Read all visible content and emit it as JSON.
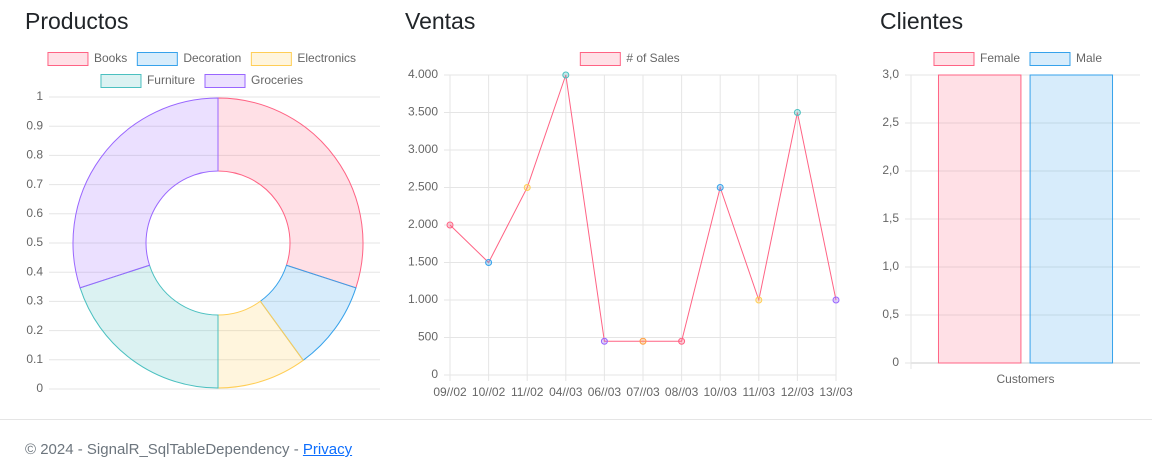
{
  "chart_data": [
    {
      "type": "doughnut",
      "title": "Productos",
      "categories": [
        "Books",
        "Decoration",
        "Electronics",
        "Furniture",
        "Groceries"
      ],
      "values": [
        3,
        1,
        1,
        2,
        3
      ],
      "colors": [
        "#ff6384",
        "#36a2eb",
        "#ffce56",
        "#4bc0c0",
        "#9966ff"
      ],
      "ylim": [
        0,
        1
      ],
      "yticks": [
        0,
        0.1,
        0.2,
        0.3,
        0.4,
        0.5,
        0.6,
        0.7,
        0.8,
        0.9,
        1
      ],
      "grid": true
    },
    {
      "type": "line",
      "title": "Ventas",
      "categories": [
        "09//02",
        "10//02",
        "11//02",
        "04//03",
        "06//03",
        "07//03",
        "08//03",
        "10//03",
        "11//03",
        "12//03",
        "13//03"
      ],
      "series": [
        {
          "name": "# of Sales",
          "color": "#ff6384",
          "values": [
            2000,
            1500,
            2500,
            4000,
            450,
            450,
            450,
            2500,
            1000,
            3500,
            1000
          ],
          "point_colors": [
            "#ff6384",
            "#36a2eb",
            "#ffce56",
            "#4bc0c0",
            "#9966ff",
            "#ff9f40",
            "#ff6384",
            "#36a2eb",
            "#ffce56",
            "#4bc0c0",
            "#9966ff"
          ]
        }
      ],
      "ylim": [
        0,
        4000
      ],
      "yticks": [
        0,
        500,
        {
          "value": 1000,
          "label": "1.000"
        },
        {
          "value": 1500,
          "label": "1.500"
        },
        {
          "value": 2000,
          "label": "2.000"
        },
        {
          "value": 2500,
          "label": "2.500"
        },
        {
          "value": 3000,
          "label": "3.000"
        },
        {
          "value": 3500,
          "label": "3.500"
        },
        {
          "value": 4000,
          "label": "4.000"
        }
      ],
      "grid": true
    },
    {
      "type": "bar",
      "title": "Clientes",
      "categories": [
        "Customers"
      ],
      "series": [
        {
          "name": "Female",
          "color": "#ff6384",
          "values": [
            3
          ]
        },
        {
          "name": "Male",
          "color": "#36a2eb",
          "values": [
            3
          ]
        }
      ],
      "ylim": [
        0,
        3
      ],
      "yticks": [
        0,
        {
          "value": 0.5,
          "label": "0,5"
        },
        {
          "value": 1,
          "label": "1,0"
        },
        {
          "value": 1.5,
          "label": "1,5"
        },
        {
          "value": 2,
          "label": "2,0"
        },
        {
          "value": 2.5,
          "label": "2,5"
        },
        {
          "value": 3,
          "label": "3,0"
        }
      ],
      "grid": true
    }
  ],
  "footer": {
    "text": "© 2024 - SignalR_SqlTableDependency -",
    "link": "Privacy"
  }
}
